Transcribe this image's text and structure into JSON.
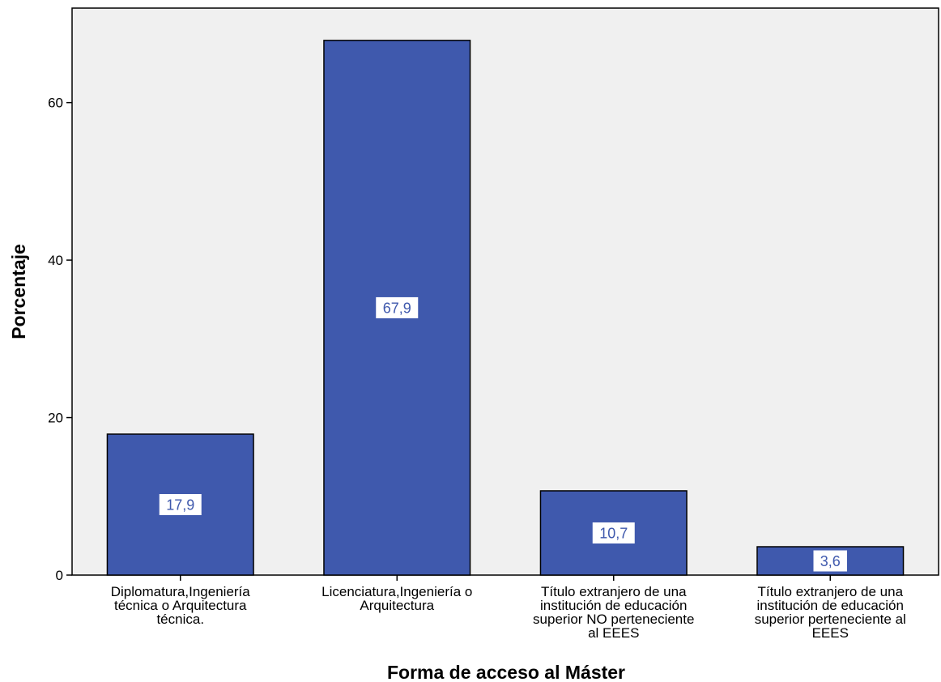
{
  "chart_data": {
    "type": "bar",
    "title": "",
    "xlabel": "Forma de acceso al Máster",
    "ylabel": "Porcentaje",
    "ylim": [
      0,
      72
    ],
    "yticks": [
      0,
      20,
      40,
      60
    ],
    "categories": [
      [
        "Diplomatura,Ingeniería",
        "técnica o Arquitectura",
        "técnica."
      ],
      [
        "Licenciatura,Ingeniería o",
        "Arquitectura"
      ],
      [
        "Título extranjero de una",
        "institución de educación",
        "superior NO perteneciente",
        "al EEES"
      ],
      [
        "Título extranjero de una",
        "institución de educación",
        "superior perteneciente al",
        "EEES"
      ]
    ],
    "values": [
      17.9,
      67.9,
      10.7,
      3.6
    ],
    "data_labels": [
      "17,9",
      "67,9",
      "10,7",
      "3,6"
    ],
    "grid": false,
    "colors": {
      "bar_fill": "#3f59ad",
      "bar_stroke": "#000000",
      "plot_background": "#f0f0f0",
      "label_text": "#3f59ad",
      "label_background": "#ffffff"
    }
  }
}
